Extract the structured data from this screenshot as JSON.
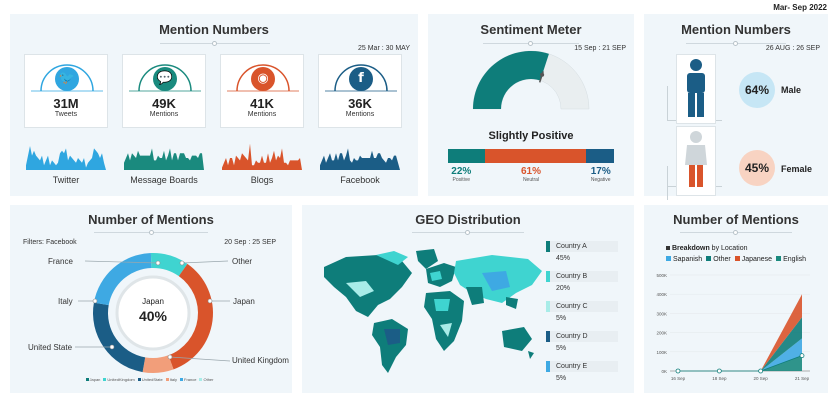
{
  "header": {
    "period": "Mar- Sep 2022"
  },
  "colors": {
    "teal": "#0e7d7a",
    "orange": "#d9542b",
    "navy": "#1b5d86",
    "sky": "#3ea9e3",
    "cyan": "#3fd4d0",
    "peach": "#f29e7a"
  },
  "mention_numbers": {
    "title": "Mention Numbers",
    "date": "25 Mar : 30 MAY",
    "cards": [
      {
        "value": "31M",
        "label": "Tweets",
        "icon": "twitter-icon",
        "color": "#2fa6e0",
        "caption": "Twitter"
      },
      {
        "value": "49K",
        "label": "Mentions",
        "icon": "speech-bubble-icon",
        "color": "#1a8a7e",
        "caption": "Message Boards"
      },
      {
        "value": "41K",
        "label": "Mentions",
        "icon": "rss-icon",
        "color": "#d9542b",
        "caption": "Blogs"
      },
      {
        "value": "36K",
        "label": "Mentions",
        "icon": "facebook-icon",
        "color": "#1b5d86",
        "caption": "Facebook"
      }
    ]
  },
  "sentiment": {
    "title": "Sentiment Meter",
    "date": "15 Sep : 21 SEP",
    "status": "Slightly Positive",
    "gauge_fraction": 0.6,
    "bars": [
      {
        "pct": "22%",
        "label": "Positive",
        "value": 22,
        "color": "#0e7d7a"
      },
      {
        "pct": "61%",
        "label": "Neutral",
        "value": 61,
        "color": "#d9542b"
      },
      {
        "pct": "17%",
        "label": "Negative",
        "value": 17,
        "color": "#1b5d86"
      }
    ]
  },
  "gender": {
    "title": "Mention Numbers",
    "date": "26 AUG : 26 SEP",
    "male": {
      "pct": "64%",
      "label": "Male",
      "icon": "male-person-icon"
    },
    "female": {
      "pct": "45%",
      "label": "Female",
      "icon": "female-person-icon"
    }
  },
  "donut": {
    "title": "Number of Mentions",
    "filters": "Filters: Facebook",
    "date": "20 Sep : 25 SEP",
    "center_label": "Japan",
    "center_value": "40%",
    "labels": {
      "france": "France",
      "other": "Other",
      "italy": "Italy",
      "japan": "Japan",
      "united_state": "United State",
      "united_kingdom": "United Kingdom"
    },
    "legend": [
      "Japan",
      "UnitedKingdom",
      "UnitedState",
      "Italy",
      "France",
      "Other"
    ]
  },
  "geo": {
    "title": "GEO Distribution",
    "countries": [
      {
        "name": "Country A",
        "value": "45%",
        "color": "#0e7d7a"
      },
      {
        "name": "Country B",
        "value": "20%",
        "color": "#3fd4d0"
      },
      {
        "name": "Country C",
        "value": "5%",
        "color": "#a8ece8"
      },
      {
        "name": "Country D",
        "value": "5%",
        "color": "#1b5d86"
      },
      {
        "name": "Country E",
        "value": "5%",
        "color": "#3ea9e3"
      }
    ]
  },
  "breakdown": {
    "title": "Number of Mentions",
    "subtitle_bold": "Breakdown",
    "subtitle_rest": " by Location",
    "legend": [
      {
        "name": "Sapanish",
        "color": "#3ea9e3"
      },
      {
        "name": "Other",
        "color": "#0e7d7a"
      },
      {
        "name": "Japanese",
        "color": "#d9542b"
      },
      {
        "name": "English",
        "color": "#1a8a7e"
      }
    ]
  },
  "chart_data": {
    "type": "area",
    "title": "Number of Mentions",
    "categories": [
      "16 Sep",
      "18 Sep",
      "20 Sep",
      "21 Sep"
    ],
    "ylim": [
      0,
      500000
    ],
    "yticks": [
      "0K",
      "100K",
      "200K",
      "300K",
      "400K",
      "500K"
    ],
    "series": [
      {
        "name": "Sapanish",
        "values": [
          0,
          0,
          0,
          90000
        ]
      },
      {
        "name": "Other",
        "values": [
          0,
          0,
          0,
          110000
        ]
      },
      {
        "name": "Japanese",
        "values": [
          0,
          0,
          0,
          120000
        ]
      },
      {
        "name": "English",
        "values": [
          0,
          0,
          0,
          80000
        ]
      }
    ]
  }
}
